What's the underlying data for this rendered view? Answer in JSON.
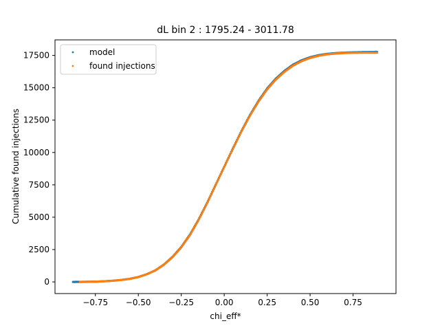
{
  "chart_data": {
    "type": "scatter",
    "title": "dL bin 2 : 1795.24 - 3011.78",
    "xlabel": "chi_eff*",
    "ylabel": "Cumulative found injections",
    "xlim": [
      -0.985,
      1.0
    ],
    "ylim": [
      -900,
      18700
    ],
    "x_ticks": [
      -0.75,
      -0.5,
      -0.25,
      0.0,
      0.25,
      0.5,
      0.75
    ],
    "x_tick_labels": [
      "−0.75",
      "−0.50",
      "−0.25",
      "0.00",
      "0.25",
      "0.50",
      "0.75"
    ],
    "y_ticks": [
      0,
      2500,
      5000,
      7500,
      10000,
      12500,
      15000,
      17500
    ],
    "y_tick_labels": [
      "0",
      "2500",
      "5000",
      "7500",
      "10000",
      "12500",
      "15000",
      "17500"
    ],
    "grid": false,
    "legend_position": "top-left",
    "series": [
      {
        "name": "model",
        "color": "#1f77b4",
        "x": [
          -0.88,
          -0.86,
          -0.83,
          -0.8,
          -0.77,
          -0.74,
          -0.7,
          -0.65,
          -0.6,
          -0.55,
          -0.5,
          -0.45,
          -0.4,
          -0.35,
          -0.3,
          -0.25,
          -0.2,
          -0.15,
          -0.1,
          -0.05,
          0.0,
          0.05,
          0.1,
          0.15,
          0.2,
          0.25,
          0.3,
          0.35,
          0.4,
          0.45,
          0.5,
          0.55,
          0.6,
          0.65,
          0.7,
          0.75,
          0.8,
          0.84,
          0.87,
          0.89
        ],
        "y": [
          0,
          2,
          4,
          8,
          15,
          25,
          50,
          90,
          150,
          240,
          380,
          600,
          900,
          1350,
          1950,
          2700,
          3650,
          4800,
          6100,
          7500,
          8900,
          10300,
          11650,
          12900,
          14000,
          14950,
          15700,
          16300,
          16780,
          17120,
          17360,
          17520,
          17620,
          17680,
          17715,
          17740,
          17755,
          17762,
          17768,
          17770
        ]
      },
      {
        "name": "found injections",
        "color": "#ff7f0e",
        "x": [
          -0.84,
          -0.82,
          -0.8,
          -0.77,
          -0.74,
          -0.7,
          -0.65,
          -0.6,
          -0.55,
          -0.5,
          -0.45,
          -0.4,
          -0.35,
          -0.3,
          -0.25,
          -0.2,
          -0.15,
          -0.1,
          -0.05,
          0.0,
          0.05,
          0.1,
          0.15,
          0.2,
          0.25,
          0.3,
          0.35,
          0.4,
          0.45,
          0.5,
          0.55,
          0.6,
          0.65,
          0.7,
          0.75,
          0.8,
          0.85,
          0.89
        ],
        "y": [
          0,
          2,
          5,
          12,
          22,
          45,
          85,
          145,
          235,
          370,
          590,
          890,
          1330,
          1920,
          2660,
          3600,
          4750,
          6050,
          7460,
          8860,
          10250,
          11600,
          12840,
          13930,
          14870,
          15620,
          16220,
          16700,
          17050,
          17300,
          17470,
          17580,
          17640,
          17680,
          17700,
          17710,
          17712,
          17713
        ]
      }
    ]
  }
}
